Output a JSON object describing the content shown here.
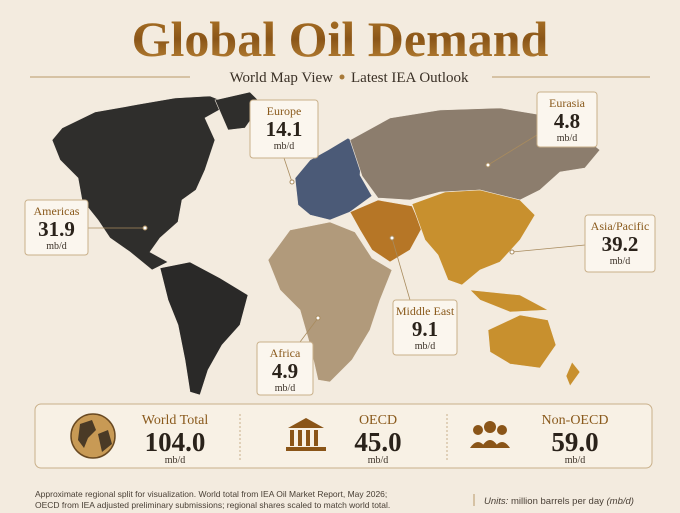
{
  "header": {
    "title": "Global Oil Demand",
    "subtitle_left": "World Map View",
    "subtitle_right": "Latest IEA Outlook"
  },
  "regions": [
    {
      "name": "Europe",
      "value": "14.1",
      "unit": "mb/d"
    },
    {
      "name": "Eurasia",
      "value": "4.8",
      "unit": "mb/d"
    },
    {
      "name": "Americas",
      "value": "31.9",
      "unit": "mb/d"
    },
    {
      "name": "Asia/Pacific",
      "value": "39.2",
      "unit": "mb/d"
    },
    {
      "name": "Middle East",
      "value": "9.1",
      "unit": "mb/d"
    },
    {
      "name": "Africa",
      "value": "4.9",
      "unit": "mb/d"
    }
  ],
  "summary": [
    {
      "name": "World Total",
      "value": "104.0",
      "unit": "mb/d"
    },
    {
      "name": "OECD",
      "value": "45.0",
      "unit": "mb/d"
    },
    {
      "name": "Non-OECD",
      "value": "59.0",
      "unit": "mb/d"
    }
  ],
  "footnote": [
    "Approximate regional split for visualization. World total from IEA Oil Market Report, May 2026;",
    "OECD from IEA adjusted preliminary submissions; regional shares scaled to match world total."
  ],
  "units": {
    "label": "Units:",
    "text": "million barrels per day",
    "abbr": "(mb/d)"
  }
}
